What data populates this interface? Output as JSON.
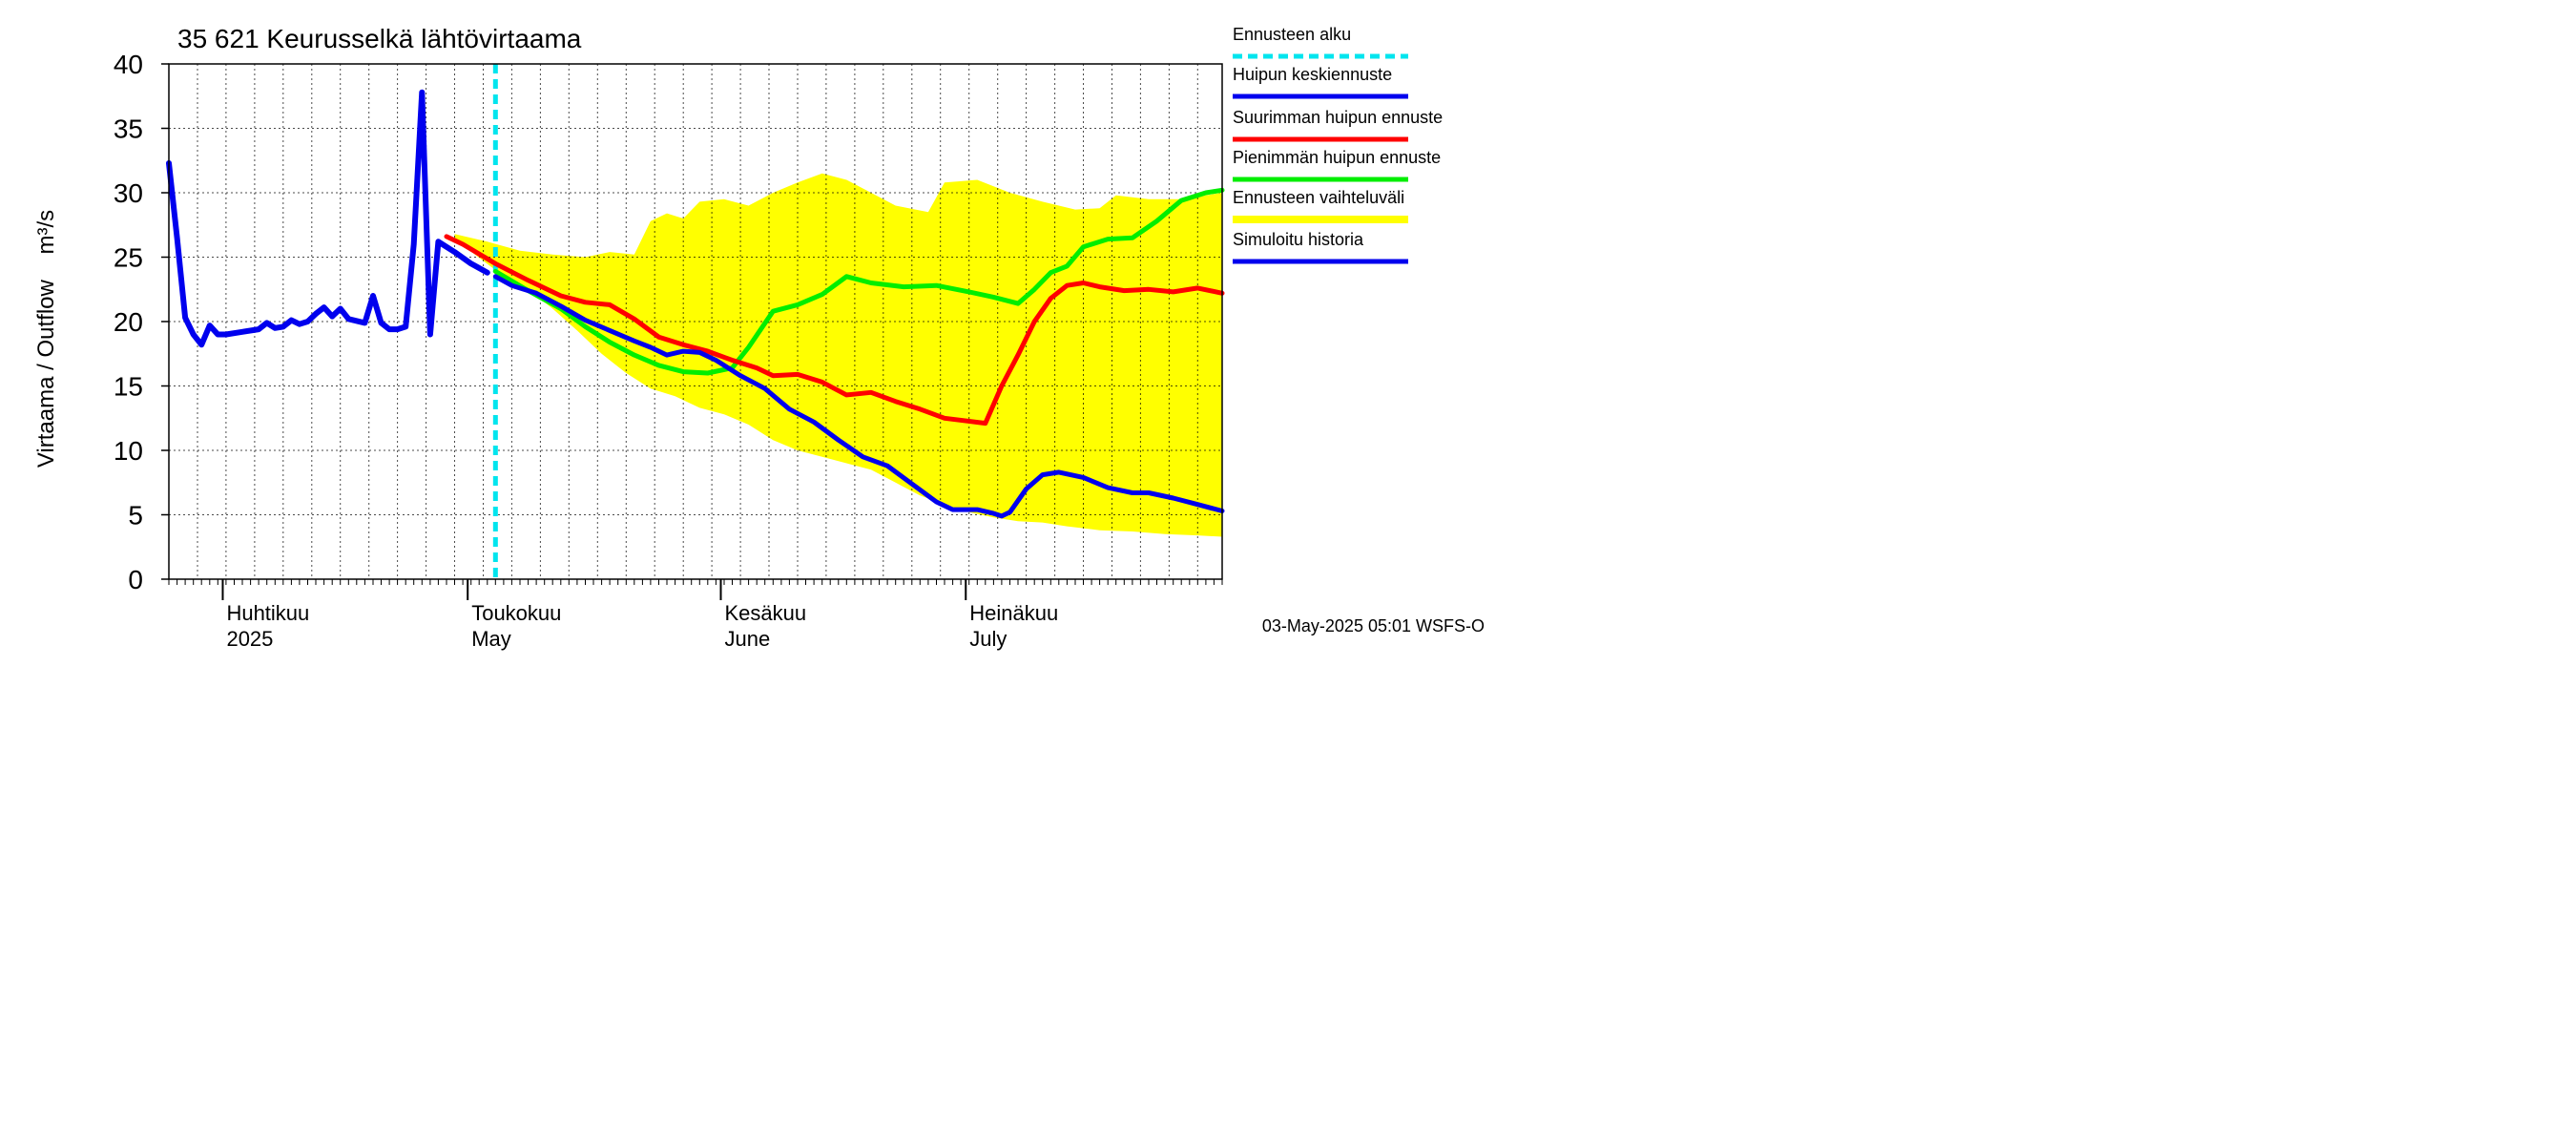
{
  "title": "35 621 Keurusselkä lähtövirtaama",
  "ylabel": "Virtaama / Outflow    m³/s",
  "footer": "03-May-2025 05:01 WSFS-O",
  "colors": {
    "forecast_start": "#00e5ee",
    "mean_peak": "#0000ee",
    "max_peak": "#ff0000",
    "min_peak": "#00ee00",
    "range": "#ffff00",
    "history": "#0000ee",
    "grid": "#000000"
  },
  "legend": [
    {
      "key": "forecast_start",
      "label": "Ennusteen alku"
    },
    {
      "key": "mean_peak",
      "label": "Huipun keskiennuste"
    },
    {
      "key": "max_peak",
      "label": "Suurimman huipun ennuste"
    },
    {
      "key": "min_peak",
      "label": "Pienimmän huipun ennuste"
    },
    {
      "key": "range",
      "label": "Ennusteen vaihteluväli"
    },
    {
      "key": "history",
      "label": "Simuloitu historia"
    }
  ],
  "chart_data": {
    "type": "line",
    "title": "35 621 Keurusselkä lähtövirtaama",
    "ylabel": "Virtaama / Outflow    m³/s",
    "ylim": [
      0,
      40
    ],
    "yticks": [
      0,
      5,
      10,
      15,
      20,
      25,
      30,
      35,
      40
    ],
    "xlim": [
      "2025-03-24",
      "2025-07-31"
    ],
    "month_labels": [
      {
        "date": "2025-04-01",
        "fi": "Huhtikuu",
        "en": "2025"
      },
      {
        "date": "2025-05-01",
        "fi": "Toukokuu",
        "en": "May"
      },
      {
        "date": "2025-06-01",
        "fi": "Kesäkuu",
        "en": "June"
      },
      {
        "date": "2025-07-01",
        "fi": "Heinäkuu",
        "en": "July"
      }
    ],
    "grid": true,
    "forecast_start": "2025-05-03",
    "series": [
      {
        "name": "Simuloitu historia",
        "key": "history",
        "points": [
          [
            "2025-03-24",
            32.3
          ],
          [
            "2025-03-25",
            26.5
          ],
          [
            "2025-03-26",
            20.3
          ],
          [
            "2025-03-27",
            19.0
          ],
          [
            "2025-03-28",
            18.2
          ],
          [
            "2025-03-29",
            19.7
          ],
          [
            "2025-03-30",
            19.0
          ],
          [
            "2025-03-31",
            19.0
          ],
          [
            "2025-04-02",
            19.2
          ],
          [
            "2025-04-04",
            19.4
          ],
          [
            "2025-04-05",
            19.9
          ],
          [
            "2025-04-06",
            19.5
          ],
          [
            "2025-04-07",
            19.6
          ],
          [
            "2025-04-08",
            20.1
          ],
          [
            "2025-04-09",
            19.8
          ],
          [
            "2025-04-10",
            20.0
          ],
          [
            "2025-04-11",
            20.6
          ],
          [
            "2025-04-12",
            21.1
          ],
          [
            "2025-04-13",
            20.4
          ],
          [
            "2025-04-14",
            21.0
          ],
          [
            "2025-04-15",
            20.2
          ],
          [
            "2025-04-17",
            19.9
          ],
          [
            "2025-04-18",
            22.0
          ],
          [
            "2025-04-19",
            19.9
          ],
          [
            "2025-04-20",
            19.4
          ],
          [
            "2025-04-21",
            19.4
          ],
          [
            "2025-04-22",
            19.6
          ],
          [
            "2025-04-23",
            26.0
          ],
          [
            "2025-04-24",
            37.8
          ],
          [
            "2025-04-25",
            19.0
          ],
          [
            "2025-04-26",
            26.2
          ],
          [
            "2025-04-28",
            25.4
          ],
          [
            "2025-04-30",
            24.5
          ],
          [
            "2025-05-02",
            23.8
          ]
        ]
      },
      {
        "name": "Huipun keskiennuste",
        "key": "mean_peak",
        "points": [
          [
            "2025-05-03",
            23.5
          ],
          [
            "2025-05-05",
            22.8
          ],
          [
            "2025-05-08",
            22.2
          ],
          [
            "2025-05-11",
            21.2
          ],
          [
            "2025-05-14",
            20.1
          ],
          [
            "2025-05-17",
            19.3
          ],
          [
            "2025-05-20",
            18.5
          ],
          [
            "2025-05-22",
            18.0
          ],
          [
            "2025-05-24",
            17.4
          ],
          [
            "2025-05-26",
            17.7
          ],
          [
            "2025-05-28",
            17.6
          ],
          [
            "2025-05-30",
            17.0
          ],
          [
            "2025-06-02",
            15.8
          ],
          [
            "2025-06-05",
            14.8
          ],
          [
            "2025-06-08",
            13.2
          ],
          [
            "2025-06-11",
            12.2
          ],
          [
            "2025-06-14",
            10.8
          ],
          [
            "2025-06-17",
            9.5
          ],
          [
            "2025-06-20",
            8.8
          ],
          [
            "2025-06-23",
            7.4
          ],
          [
            "2025-06-26",
            6.0
          ],
          [
            "2025-06-28",
            5.4
          ],
          [
            "2025-07-01",
            5.4
          ],
          [
            "2025-07-03",
            5.1
          ],
          [
            "2025-07-04",
            4.9
          ],
          [
            "2025-07-05",
            5.2
          ],
          [
            "2025-07-07",
            7.0
          ],
          [
            "2025-07-09",
            8.1
          ],
          [
            "2025-07-11",
            8.3
          ],
          [
            "2025-07-14",
            7.9
          ],
          [
            "2025-07-17",
            7.1
          ],
          [
            "2025-07-20",
            6.7
          ],
          [
            "2025-07-22",
            6.7
          ],
          [
            "2025-07-25",
            6.3
          ],
          [
            "2025-07-28",
            5.8
          ],
          [
            "2025-07-31",
            5.3
          ]
        ]
      },
      {
        "name": "Suurimman huipun ennuste",
        "key": "max_peak",
        "points": [
          [
            "2025-04-27",
            26.6
          ],
          [
            "2025-04-29",
            26.0
          ],
          [
            "2025-05-03",
            24.5
          ],
          [
            "2025-05-07",
            23.2
          ],
          [
            "2025-05-11",
            22.0
          ],
          [
            "2025-05-14",
            21.5
          ],
          [
            "2025-05-17",
            21.3
          ],
          [
            "2025-05-20",
            20.2
          ],
          [
            "2025-05-23",
            18.8
          ],
          [
            "2025-05-26",
            18.2
          ],
          [
            "2025-05-29",
            17.7
          ],
          [
            "2025-06-01",
            17.0
          ],
          [
            "2025-06-04",
            16.4
          ],
          [
            "2025-06-06",
            15.8
          ],
          [
            "2025-06-09",
            15.9
          ],
          [
            "2025-06-12",
            15.3
          ],
          [
            "2025-06-15",
            14.3
          ],
          [
            "2025-06-18",
            14.5
          ],
          [
            "2025-06-21",
            13.8
          ],
          [
            "2025-06-24",
            13.2
          ],
          [
            "2025-06-27",
            12.5
          ],
          [
            "2025-07-02",
            12.1
          ],
          [
            "2025-07-04",
            15.0
          ],
          [
            "2025-07-06",
            17.4
          ],
          [
            "2025-07-08",
            20.0
          ],
          [
            "2025-07-10",
            21.8
          ],
          [
            "2025-07-12",
            22.8
          ],
          [
            "2025-07-14",
            23.0
          ],
          [
            "2025-07-16",
            22.7
          ],
          [
            "2025-07-19",
            22.4
          ],
          [
            "2025-07-22",
            22.5
          ],
          [
            "2025-07-25",
            22.3
          ],
          [
            "2025-07-28",
            22.6
          ],
          [
            "2025-07-31",
            22.2
          ]
        ]
      },
      {
        "name": "Pienimmän huipun ennuste",
        "key": "min_peak",
        "points": [
          [
            "2025-05-03",
            23.9
          ],
          [
            "2025-05-07",
            22.4
          ],
          [
            "2025-05-11",
            21.0
          ],
          [
            "2025-05-14",
            19.6
          ],
          [
            "2025-05-17",
            18.4
          ],
          [
            "2025-05-20",
            17.4
          ],
          [
            "2025-05-23",
            16.6
          ],
          [
            "2025-05-26",
            16.1
          ],
          [
            "2025-05-29",
            16.0
          ],
          [
            "2025-06-01",
            16.4
          ],
          [
            "2025-06-03",
            18.0
          ],
          [
            "2025-06-06",
            20.8
          ],
          [
            "2025-06-09",
            21.3
          ],
          [
            "2025-06-12",
            22.1
          ],
          [
            "2025-06-15",
            23.5
          ],
          [
            "2025-06-18",
            23.0
          ],
          [
            "2025-06-22",
            22.7
          ],
          [
            "2025-06-26",
            22.8
          ],
          [
            "2025-06-30",
            22.3
          ],
          [
            "2025-07-03",
            21.9
          ],
          [
            "2025-07-06",
            21.4
          ],
          [
            "2025-07-08",
            22.5
          ],
          [
            "2025-07-10",
            23.8
          ],
          [
            "2025-07-12",
            24.3
          ],
          [
            "2025-07-14",
            25.8
          ],
          [
            "2025-07-17",
            26.4
          ],
          [
            "2025-07-20",
            26.5
          ],
          [
            "2025-07-23",
            27.8
          ],
          [
            "2025-07-26",
            29.4
          ],
          [
            "2025-07-29",
            30.0
          ],
          [
            "2025-07-31",
            30.2
          ]
        ]
      }
    ],
    "range": {
      "name": "Ennusteen vaihteluväli",
      "key": "range",
      "upper": [
        [
          "2025-04-28",
          26.8
        ],
        [
          "2025-05-02",
          26.2
        ],
        [
          "2025-05-06",
          25.5
        ],
        [
          "2025-05-10",
          25.2
        ],
        [
          "2025-05-14",
          25.0
        ],
        [
          "2025-05-17",
          25.4
        ],
        [
          "2025-05-20",
          25.2
        ],
        [
          "2025-05-22",
          27.8
        ],
        [
          "2025-05-24",
          28.4
        ],
        [
          "2025-05-26",
          28.0
        ],
        [
          "2025-05-28",
          29.3
        ],
        [
          "2025-05-31",
          29.5
        ],
        [
          "2025-06-03",
          29.0
        ],
        [
          "2025-06-06",
          30.0
        ],
        [
          "2025-06-09",
          30.8
        ],
        [
          "2025-06-12",
          31.5
        ],
        [
          "2025-06-15",
          31.0
        ],
        [
          "2025-06-18",
          30.0
        ],
        [
          "2025-06-21",
          29.0
        ],
        [
          "2025-06-25",
          28.5
        ],
        [
          "2025-06-27",
          30.8
        ],
        [
          "2025-07-01",
          31.0
        ],
        [
          "2025-07-05",
          30.0
        ],
        [
          "2025-07-09",
          29.3
        ],
        [
          "2025-07-13",
          28.7
        ],
        [
          "2025-07-16",
          28.8
        ],
        [
          "2025-07-18",
          29.8
        ],
        [
          "2025-07-22",
          29.5
        ],
        [
          "2025-07-26",
          29.5
        ],
        [
          "2025-07-31",
          30.0
        ]
      ],
      "lower": [
        [
          "2025-04-28",
          26.4
        ],
        [
          "2025-05-03",
          24.0
        ],
        [
          "2025-05-07",
          22.5
        ],
        [
          "2025-05-10",
          21.0
        ],
        [
          "2025-05-13",
          19.3
        ],
        [
          "2025-05-16",
          17.5
        ],
        [
          "2025-05-19",
          16.0
        ],
        [
          "2025-05-22",
          14.8
        ],
        [
          "2025-05-25",
          14.2
        ],
        [
          "2025-05-28",
          13.3
        ],
        [
          "2025-05-31",
          12.8
        ],
        [
          "2025-06-03",
          12.0
        ],
        [
          "2025-06-06",
          10.8
        ],
        [
          "2025-06-09",
          10.0
        ],
        [
          "2025-06-12",
          9.5
        ],
        [
          "2025-06-15",
          9.0
        ],
        [
          "2025-06-18",
          8.5
        ],
        [
          "2025-06-21",
          7.5
        ],
        [
          "2025-06-24",
          6.5
        ],
        [
          "2025-06-27",
          5.8
        ],
        [
          "2025-06-30",
          5.2
        ],
        [
          "2025-07-03",
          4.8
        ],
        [
          "2025-07-06",
          4.5
        ],
        [
          "2025-07-09",
          4.4
        ],
        [
          "2025-07-12",
          4.1
        ],
        [
          "2025-07-16",
          3.8
        ],
        [
          "2025-07-20",
          3.7
        ],
        [
          "2025-07-24",
          3.5
        ],
        [
          "2025-07-28",
          3.4
        ],
        [
          "2025-07-31",
          3.3
        ]
      ]
    }
  }
}
